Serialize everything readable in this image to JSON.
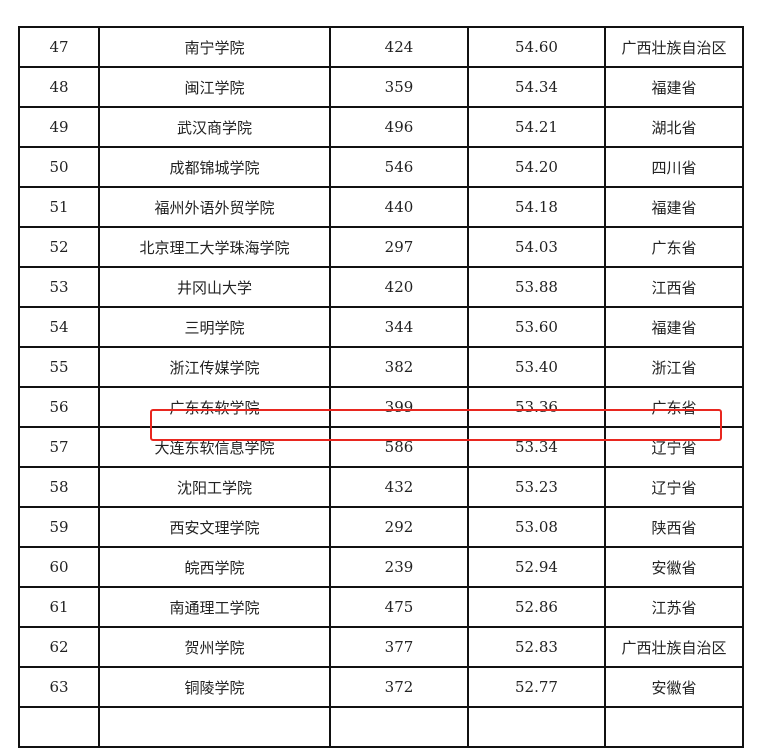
{
  "table": {
    "rows": [
      [
        "47",
        "南宁学院",
        "424",
        "54.60",
        "广西壮族自治区"
      ],
      [
        "48",
        "闽江学院",
        "359",
        "54.34",
        "福建省"
      ],
      [
        "49",
        "武汉商学院",
        "496",
        "54.21",
        "湖北省"
      ],
      [
        "50",
        "成都锦城学院",
        "546",
        "54.20",
        "四川省"
      ],
      [
        "51",
        "福州外语外贸学院",
        "440",
        "54.18",
        "福建省"
      ],
      [
        "52",
        "北京理工大学珠海学院",
        "297",
        "54.03",
        "广东省"
      ],
      [
        "53",
        "井冈山大学",
        "420",
        "53.88",
        "江西省"
      ],
      [
        "54",
        "三明学院",
        "344",
        "53.60",
        "福建省"
      ],
      [
        "55",
        "浙江传媒学院",
        "382",
        "53.40",
        "浙江省"
      ],
      [
        "56",
        "广东东软学院",
        "399",
        "53.36",
        "广东省"
      ],
      [
        "57",
        "大连东软信息学院",
        "586",
        "53.34",
        "辽宁省"
      ],
      [
        "58",
        "沈阳工学院",
        "432",
        "53.23",
        "辽宁省"
      ],
      [
        "59",
        "西安文理学院",
        "292",
        "53.08",
        "陕西省"
      ],
      [
        "60",
        "皖西学院",
        "239",
        "52.94",
        "安徽省"
      ],
      [
        "61",
        "南通理工学院",
        "475",
        "52.86",
        "江苏省"
      ],
      [
        "62",
        "贺州学院",
        "377",
        "52.83",
        "广西壮族自治区"
      ],
      [
        "63",
        "铜陵学院",
        "372",
        "52.77",
        "安徽省"
      ]
    ],
    "highlighted_rank": "56",
    "highlight_color": "#e8271f"
  }
}
